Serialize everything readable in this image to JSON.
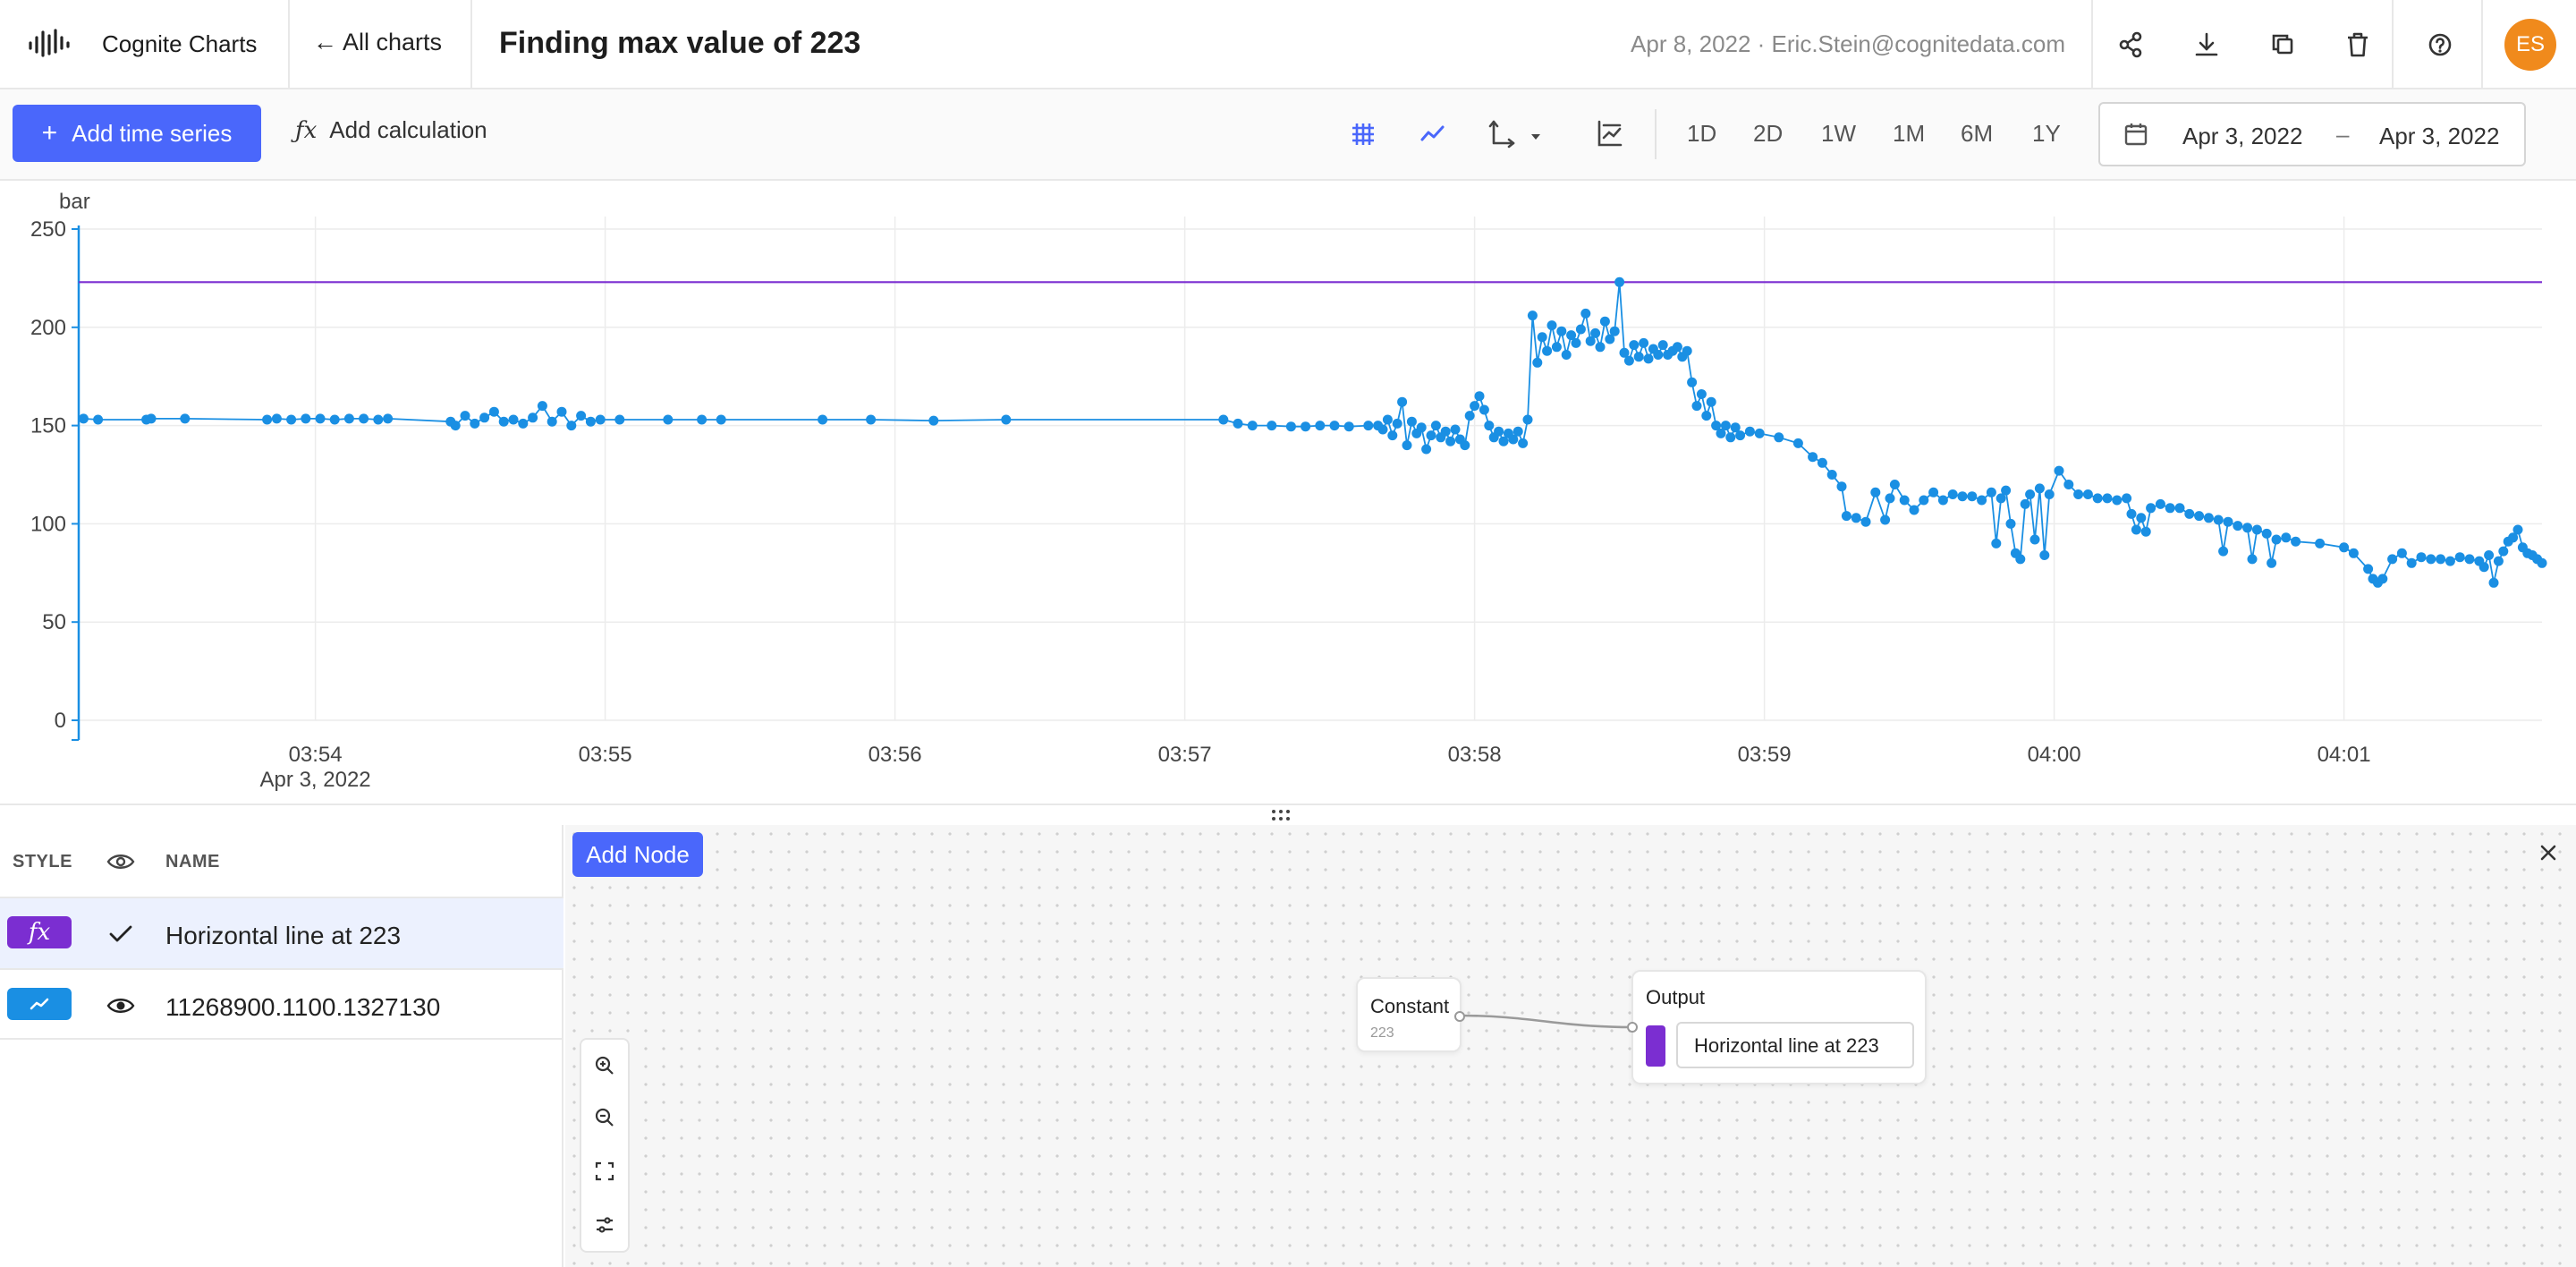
{
  "app": {
    "title": "Cognite Charts",
    "back_label": "← All charts",
    "chart_title": "Finding max value of 223",
    "meta": "Apr 8, 2022 · Eric.Stein@cognitedata.com",
    "avatar_initials": "ES",
    "avatar_color": "#f08a1c",
    "header_icons": [
      "share-icon",
      "download-icon",
      "duplicate-icon",
      "trash-icon",
      "help-icon"
    ]
  },
  "toolbar": {
    "add_series_label": "Add time series",
    "add_calc_label": "Add calculation",
    "view_icons": [
      "grid-icon",
      "line-style-icon",
      "axis-icon",
      "merge-units-icon"
    ],
    "ranges": [
      "1D",
      "2D",
      "1W",
      "1M",
      "6M",
      "1Y"
    ],
    "date_from": "Apr 3, 2022",
    "date_sep": "–",
    "date_to": "Apr 3, 2022",
    "accent": "#4a67fb"
  },
  "chart_data": {
    "type": "line",
    "ylabel": "bar",
    "ylim": [
      0,
      250
    ],
    "yticks": [
      0,
      50,
      100,
      150,
      200,
      250
    ],
    "xlim": [
      "03:53:11",
      "04:01:41"
    ],
    "xticks": [
      "03:54",
      "03:55",
      "03:56",
      "03:57",
      "03:58",
      "03:59",
      "04:00",
      "04:01"
    ],
    "xtick_date": "Apr 3, 2022",
    "grid": true,
    "series": [
      {
        "color": "#7b2ed1",
        "points": [
          [
            "03:53:11",
            223
          ],
          [
            "04:01:41",
            223
          ]
        ]
      },
      {
        "color": "#1a8fe3",
        "points": [
          [
            "03:53:12",
            153.5
          ],
          [
            "03:53:15",
            153
          ],
          [
            "03:53:25",
            153
          ],
          [
            "03:53:26",
            153.5
          ],
          [
            "03:53:33",
            153.5
          ],
          [
            "03:53:50",
            153
          ],
          [
            "03:53:52",
            153.5
          ],
          [
            "03:53:55",
            153
          ],
          [
            "03:53:58",
            153.5
          ],
          [
            "03:54:01",
            153.5
          ],
          [
            "03:54:04",
            153
          ],
          [
            "03:54:07",
            153.5
          ],
          [
            "03:54:10",
            153.5
          ],
          [
            "03:54:13",
            153
          ],
          [
            "03:54:15",
            153.5
          ],
          [
            "03:54:28",
            152
          ],
          [
            "03:54:29",
            150
          ],
          [
            "03:54:31",
            155
          ],
          [
            "03:54:33",
            151
          ],
          [
            "03:54:35",
            154
          ],
          [
            "03:54:37",
            157
          ],
          [
            "03:54:39",
            152
          ],
          [
            "03:54:41",
            153
          ],
          [
            "03:54:43",
            151
          ],
          [
            "03:54:45",
            154
          ],
          [
            "03:54:47",
            160
          ],
          [
            "03:54:49",
            152
          ],
          [
            "03:54:51",
            157
          ],
          [
            "03:54:53",
            150
          ],
          [
            "03:54:55",
            155
          ],
          [
            "03:54:57",
            152
          ],
          [
            "03:54:59",
            153
          ],
          [
            "03:55:03",
            153
          ],
          [
            "03:55:13",
            153
          ],
          [
            "03:55:20",
            153
          ],
          [
            "03:55:24",
            153
          ],
          [
            "03:55:45",
            153
          ],
          [
            "03:55:55",
            153
          ],
          [
            "03:56:08",
            152.5
          ],
          [
            "03:56:23",
            153
          ],
          [
            "03:57:08",
            153
          ],
          [
            "03:57:11",
            151
          ],
          [
            "03:57:14",
            150
          ],
          [
            "03:57:18",
            150
          ],
          [
            "03:57:22",
            149.5
          ],
          [
            "03:57:25",
            149.5
          ],
          [
            "03:57:28",
            150
          ],
          [
            "03:57:31",
            150
          ],
          [
            "03:57:34",
            149.5
          ],
          [
            "03:57:38",
            150
          ],
          [
            "03:57:40",
            150
          ],
          [
            "03:57:41",
            148
          ],
          [
            "03:57:42",
            153
          ],
          [
            "03:57:43",
            145
          ],
          [
            "03:57:44",
            151
          ],
          [
            "03:57:45",
            162
          ],
          [
            "03:57:46",
            140
          ],
          [
            "03:57:47",
            152
          ],
          [
            "03:57:48",
            146
          ],
          [
            "03:57:49",
            149
          ],
          [
            "03:57:50",
            138
          ],
          [
            "03:57:51",
            145
          ],
          [
            "03:57:52",
            150
          ],
          [
            "03:57:53",
            144
          ],
          [
            "03:57:54",
            147
          ],
          [
            "03:57:55",
            142
          ],
          [
            "03:57:56",
            148
          ],
          [
            "03:57:57",
            143
          ],
          [
            "03:57:58",
            140
          ],
          [
            "03:57:59",
            155
          ],
          [
            "03:58:00",
            160
          ],
          [
            "03:58:01",
            165
          ],
          [
            "03:58:02",
            158
          ],
          [
            "03:58:03",
            150
          ],
          [
            "03:58:04",
            144
          ],
          [
            "03:58:05",
            147
          ],
          [
            "03:58:06",
            142
          ],
          [
            "03:58:07",
            146
          ],
          [
            "03:58:08",
            143
          ],
          [
            "03:58:09",
            147
          ],
          [
            "03:58:10",
            141
          ],
          [
            "03:58:11",
            153
          ],
          [
            "03:58:12",
            206
          ],
          [
            "03:58:13",
            182
          ],
          [
            "03:58:14",
            195
          ],
          [
            "03:58:15",
            188
          ],
          [
            "03:58:16",
            201
          ],
          [
            "03:58:17",
            190
          ],
          [
            "03:58:18",
            198
          ],
          [
            "03:58:19",
            186
          ],
          [
            "03:58:20",
            196
          ],
          [
            "03:58:21",
            192
          ],
          [
            "03:58:22",
            199
          ],
          [
            "03:58:23",
            207
          ],
          [
            "03:58:24",
            193
          ],
          [
            "03:58:25",
            197
          ],
          [
            "03:58:26",
            190
          ],
          [
            "03:58:27",
            203
          ],
          [
            "03:58:28",
            194
          ],
          [
            "03:58:29",
            198
          ],
          [
            "03:58:30",
            223
          ],
          [
            "03:58:31",
            187
          ],
          [
            "03:58:32",
            183
          ],
          [
            "03:58:33",
            191
          ],
          [
            "03:58:34",
            185
          ],
          [
            "03:58:35",
            192
          ],
          [
            "03:58:36",
            184
          ],
          [
            "03:58:37",
            189
          ],
          [
            "03:58:38",
            186
          ],
          [
            "03:58:39",
            191
          ],
          [
            "03:58:40",
            186
          ],
          [
            "03:58:41",
            188
          ],
          [
            "03:58:42",
            190
          ],
          [
            "03:58:43",
            185
          ],
          [
            "03:58:44",
            188
          ],
          [
            "03:58:45",
            172
          ],
          [
            "03:58:46",
            160
          ],
          [
            "03:58:47",
            166
          ],
          [
            "03:58:48",
            155
          ],
          [
            "03:58:49",
            162
          ],
          [
            "03:58:50",
            150
          ],
          [
            "03:58:51",
            146
          ],
          [
            "03:58:52",
            150
          ],
          [
            "03:58:53",
            144
          ],
          [
            "03:58:54",
            149
          ],
          [
            "03:58:55",
            145
          ],
          [
            "03:58:57",
            147
          ],
          [
            "03:58:59",
            146
          ],
          [
            "03:59:03",
            144
          ],
          [
            "03:59:07",
            141
          ],
          [
            "03:59:10",
            134
          ],
          [
            "03:59:12",
            131
          ],
          [
            "03:59:14",
            125
          ],
          [
            "03:59:16",
            119
          ],
          [
            "03:59:17",
            104
          ],
          [
            "03:59:19",
            103
          ],
          [
            "03:59:21",
            101
          ],
          [
            "03:59:23",
            116
          ],
          [
            "03:59:25",
            102
          ],
          [
            "03:59:26",
            113
          ],
          [
            "03:59:27",
            120
          ],
          [
            "03:59:29",
            112
          ],
          [
            "03:59:31",
            107
          ],
          [
            "03:59:33",
            112
          ],
          [
            "03:59:35",
            116
          ],
          [
            "03:59:37",
            112
          ],
          [
            "03:59:39",
            115
          ],
          [
            "03:59:41",
            114
          ],
          [
            "03:59:43",
            114
          ],
          [
            "03:59:45",
            112
          ],
          [
            "03:59:47",
            116
          ],
          [
            "03:59:48",
            90
          ],
          [
            "03:59:49",
            113
          ],
          [
            "03:59:50",
            117
          ],
          [
            "03:59:51",
            100
          ],
          [
            "03:59:52",
            85
          ],
          [
            "03:59:53",
            82
          ],
          [
            "03:59:54",
            110
          ],
          [
            "03:59:55",
            115
          ],
          [
            "03:59:56",
            92
          ],
          [
            "03:59:57",
            118
          ],
          [
            "03:59:58",
            84
          ],
          [
            "03:59:59",
            115
          ],
          [
            "04:00:01",
            127
          ],
          [
            "04:00:03",
            120
          ],
          [
            "04:00:05",
            115
          ],
          [
            "04:00:07",
            115
          ],
          [
            "04:00:09",
            113
          ],
          [
            "04:00:11",
            113
          ],
          [
            "04:00:13",
            112
          ],
          [
            "04:00:15",
            113
          ],
          [
            "04:00:16",
            105
          ],
          [
            "04:00:17",
            97
          ],
          [
            "04:00:18",
            103
          ],
          [
            "04:00:19",
            96
          ],
          [
            "04:00:20",
            108
          ],
          [
            "04:00:22",
            110
          ],
          [
            "04:00:24",
            108
          ],
          [
            "04:00:26",
            108
          ],
          [
            "04:00:28",
            105
          ],
          [
            "04:00:30",
            104
          ],
          [
            "04:00:32",
            103
          ],
          [
            "04:00:34",
            102
          ],
          [
            "04:00:35",
            86
          ],
          [
            "04:00:36",
            101
          ],
          [
            "04:00:38",
            99
          ],
          [
            "04:00:40",
            98
          ],
          [
            "04:00:41",
            82
          ],
          [
            "04:00:42",
            97
          ],
          [
            "04:00:44",
            95
          ],
          [
            "04:00:45",
            80
          ],
          [
            "04:00:46",
            92
          ],
          [
            "04:00:48",
            93
          ],
          [
            "04:00:50",
            91
          ],
          [
            "04:00:55",
            90
          ],
          [
            "04:01:00",
            88
          ],
          [
            "04:01:02",
            85
          ],
          [
            "04:01:05",
            77
          ],
          [
            "04:01:06",
            72
          ],
          [
            "04:01:07",
            70
          ],
          [
            "04:01:08",
            72
          ],
          [
            "04:01:10",
            82
          ],
          [
            "04:01:12",
            85
          ],
          [
            "04:01:14",
            80
          ],
          [
            "04:01:16",
            83
          ],
          [
            "04:01:18",
            82
          ],
          [
            "04:01:20",
            82
          ],
          [
            "04:01:22",
            81
          ],
          [
            "04:01:24",
            83
          ],
          [
            "04:01:26",
            82
          ],
          [
            "04:01:28",
            81
          ],
          [
            "04:01:29",
            78
          ],
          [
            "04:01:30",
            84
          ],
          [
            "04:01:31",
            70
          ],
          [
            "04:01:32",
            81
          ],
          [
            "04:01:33",
            86
          ],
          [
            "04:01:34",
            91
          ],
          [
            "04:01:35",
            93
          ],
          [
            "04:01:36",
            97
          ],
          [
            "04:01:37",
            88
          ],
          [
            "04:01:38",
            85
          ],
          [
            "04:01:39",
            84
          ],
          [
            "04:01:40",
            82
          ],
          [
            "04:01:41",
            80
          ]
        ]
      }
    ]
  },
  "table": {
    "col_style": "STYLE",
    "col_name": "NAME",
    "rows": [
      {
        "name": "Horizontal line at 223",
        "badge": "fx",
        "color": "#7b2ed1"
      },
      {
        "name": "11268900.1100.1327130",
        "color": "#1a8fe3"
      }
    ]
  },
  "editor": {
    "add_node_label": "Add Node",
    "constant_title": "Constant",
    "constant_value": "223",
    "output_title": "Output",
    "output_name": "Horizontal line at 223",
    "output_color": "#7b2ed1"
  }
}
